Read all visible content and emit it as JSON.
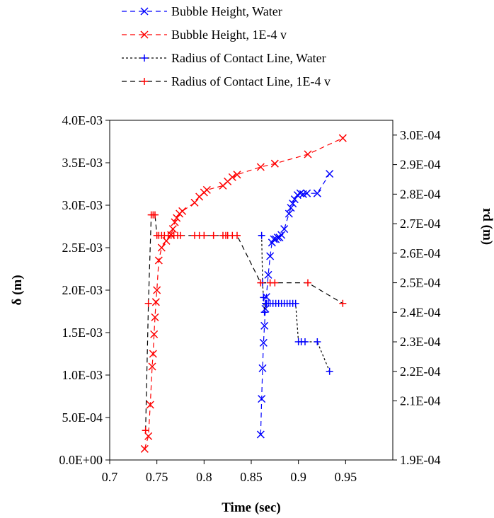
{
  "chart_data": {
    "type": "line",
    "xlabel": "Time (sec)",
    "ylabel_left": "δ (m)",
    "ylabel_right": "rd (m)",
    "xlim": [
      0.7,
      1.0
    ],
    "ylim_left": [
      0,
      0.004
    ],
    "ylim_right": [
      0.00019,
      0.000305
    ],
    "x_ticks": [
      0.7,
      0.75,
      0.8,
      0.85,
      0.9,
      0.95
    ],
    "x_tick_labels": [
      "0.7",
      "0.75",
      "0.8",
      "0.85",
      "0.9",
      "0.95"
    ],
    "y_left_ticks": [
      0,
      0.0005,
      0.001,
      0.0015,
      0.002,
      0.0025,
      0.003,
      0.0035,
      0.004
    ],
    "y_left_tick_labels": [
      "0.0E+00",
      "5.0E-04",
      "1.0E-03",
      "1.5E-03",
      "2.0E-03",
      "2.5E-03",
      "3.0E-03",
      "3.5E-03",
      "4.0E-03"
    ],
    "y_right_ticks": [
      0.00019,
      0.00021,
      0.00022,
      0.00023,
      0.00024,
      0.00025,
      0.00026,
      0.00027,
      0.00028,
      0.00029,
      0.0003
    ],
    "y_right_tick_labels": [
      "1.9E-04",
      "2.1E-04",
      "2.2E-04",
      "2.3E-04",
      "2.4E-04",
      "2.5E-04",
      "2.6E-04",
      "2.7E-04",
      "2.8E-04",
      "2.9E-04",
      "3.0E-04"
    ],
    "grid": false,
    "legend_position": "top",
    "series": [
      {
        "name": "Bubble Height, Water",
        "axis": "left",
        "color": "#0000ff",
        "marker": "x",
        "line": "dashed",
        "x": [
          0.86,
          0.861,
          0.862,
          0.863,
          0.864,
          0.865,
          0.866,
          0.868,
          0.87,
          0.872,
          0.874,
          0.876,
          0.878,
          0.88,
          0.882,
          0.885,
          0.89,
          0.892,
          0.894,
          0.896,
          0.899,
          0.902,
          0.905,
          0.909,
          0.92,
          0.933
        ],
        "y": [
          0.0003,
          0.00072,
          0.00108,
          0.00138,
          0.00158,
          0.00178,
          0.00192,
          0.00218,
          0.0024,
          0.00256,
          0.0026,
          0.0026,
          0.00262,
          0.00262,
          0.00265,
          0.00272,
          0.0029,
          0.00297,
          0.00302,
          0.00307,
          0.00312,
          0.00314,
          0.00313,
          0.00314,
          0.00314,
          0.00337
        ]
      },
      {
        "name": "Bubble Height, 1E-4 v",
        "axis": "left",
        "color": "#ff0000",
        "marker": "x",
        "line": "dashed",
        "x": [
          0.737,
          0.741,
          0.743,
          0.745,
          0.746,
          0.747,
          0.748,
          0.749,
          0.75,
          0.752,
          0.755,
          0.76,
          0.765,
          0.767,
          0.769,
          0.771,
          0.774,
          0.777,
          0.79,
          0.795,
          0.8,
          0.803,
          0.82,
          0.825,
          0.83,
          0.835,
          0.86,
          0.875,
          0.91,
          0.947
        ],
        "y": [
          0.00013,
          0.00028,
          0.00065,
          0.0011,
          0.00125,
          0.00148,
          0.00168,
          0.00186,
          0.002,
          0.00235,
          0.0025,
          0.00258,
          0.00265,
          0.00272,
          0.0028,
          0.00285,
          0.0029,
          0.00293,
          0.00303,
          0.0031,
          0.00315,
          0.00318,
          0.00323,
          0.00328,
          0.00333,
          0.00336,
          0.00345,
          0.00349,
          0.0036,
          0.00379
        ]
      },
      {
        "name": "Radius of Contact Line, Water",
        "axis": "right",
        "color": "#0000ff",
        "line_color": "#000000",
        "marker": "+",
        "line": "dotted",
        "x": [
          0.861,
          0.862,
          0.863,
          0.864,
          0.865,
          0.866,
          0.868,
          0.87,
          0.873,
          0.876,
          0.879,
          0.882,
          0.885,
          0.888,
          0.891,
          0.894,
          0.897,
          0.9,
          0.903,
          0.907,
          0.92,
          0.933
        ],
        "y": [
          0.000266,
          0.00025,
          0.000245,
          0.00024,
          0.000243,
          0.000243,
          0.000243,
          0.000243,
          0.000243,
          0.000243,
          0.000243,
          0.000243,
          0.000243,
          0.000243,
          0.000243,
          0.000243,
          0.000243,
          0.00023,
          0.00023,
          0.00023,
          0.00023,
          0.00022
        ]
      },
      {
        "name": "Radius of Contact Line, 1E-4 v",
        "axis": "right",
        "color": "#ff0000",
        "line_color": "#000000",
        "marker": "+",
        "line": "dashed",
        "x": [
          0.738,
          0.741,
          0.744,
          0.746,
          0.748,
          0.75,
          0.752,
          0.755,
          0.758,
          0.762,
          0.765,
          0.768,
          0.772,
          0.775,
          0.79,
          0.795,
          0.8,
          0.81,
          0.82,
          0.823,
          0.825,
          0.83,
          0.835,
          0.86,
          0.87,
          0.875,
          0.91,
          0.947
        ],
        "y": [
          0.0002,
          0.000243,
          0.000273,
          0.000273,
          0.000273,
          0.000266,
          0.000266,
          0.000266,
          0.000266,
          0.000266,
          0.000266,
          0.000266,
          0.000266,
          0.000266,
          0.000266,
          0.000266,
          0.000266,
          0.000266,
          0.000266,
          0.000266,
          0.000266,
          0.000266,
          0.000266,
          0.00025,
          0.00025,
          0.00025,
          0.00025,
          0.000243
        ]
      }
    ]
  }
}
